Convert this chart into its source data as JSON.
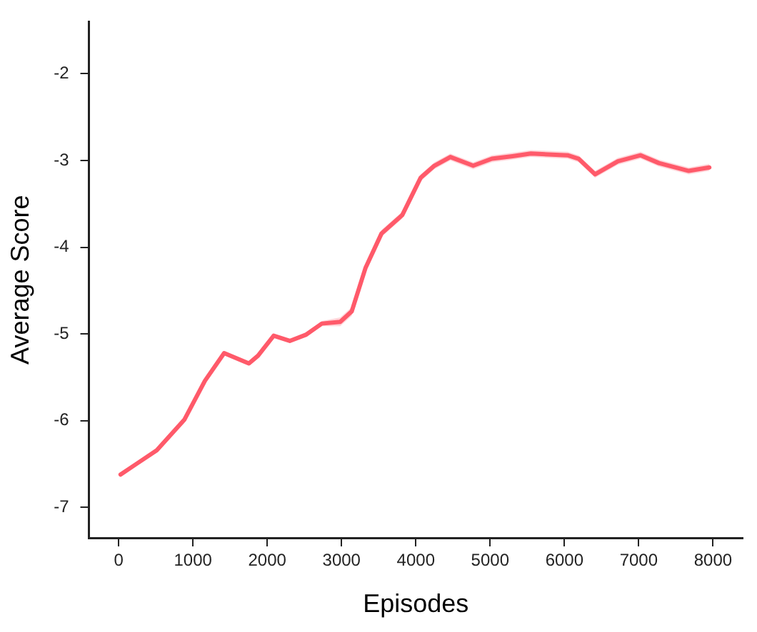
{
  "chart_data": {
    "type": "line",
    "xlabel": "Episodes",
    "ylabel": "Average Score",
    "xlim": [
      -400,
      8400
    ],
    "ylim": [
      -7.35,
      -1.4
    ],
    "xticks": [
      0,
      1000,
      2000,
      3000,
      4000,
      5000,
      6000,
      7000,
      8000
    ],
    "yticks": [
      -7,
      -6,
      -5,
      -4,
      -3,
      -2
    ],
    "grid": false,
    "legend": false,
    "marker": "none",
    "line_style": "solid",
    "series": [
      {
        "color": "#ff5a6a",
        "x": [
          26,
          235,
          513,
          883,
          1161,
          1420,
          1753,
          1876,
          2087,
          2303,
          2518,
          2735,
          2982,
          3137,
          3322,
          3539,
          3817,
          4064,
          4250,
          4465,
          4772,
          5024,
          5302,
          5549,
          6043,
          6192,
          6413,
          6720,
          7026,
          7272,
          7674,
          7951
        ],
        "values": [
          -6.62,
          -6.5,
          -6.34,
          -5.99,
          -5.54,
          -5.22,
          -5.34,
          -5.25,
          -5.02,
          -5.08,
          -5.01,
          -4.88,
          -4.86,
          -4.74,
          -4.24,
          -3.84,
          -3.63,
          -3.2,
          -3.06,
          -2.96,
          -3.06,
          -2.98,
          -2.95,
          -2.92,
          -2.94,
          -2.98,
          -3.16,
          -3.01,
          -2.94,
          -3.03,
          -3.12,
          -3.08
        ],
        "lower": [
          -6.64,
          -6.52,
          -6.36,
          -6.01,
          -5.56,
          -5.24,
          -5.36,
          -5.27,
          -5.04,
          -5.1,
          -5.03,
          -4.91,
          -4.91,
          -4.79,
          -4.28,
          -3.88,
          -3.67,
          -3.24,
          -3.1,
          -3.0,
          -3.1,
          -3.02,
          -2.99,
          -2.96,
          -2.98,
          -3.02,
          -3.2,
          -3.05,
          -2.98,
          -3.07,
          -3.16,
          -3.12
        ],
        "upper": [
          -6.6,
          -6.48,
          -6.32,
          -5.97,
          -5.52,
          -5.2,
          -5.32,
          -5.23,
          -5.0,
          -5.06,
          -4.99,
          -4.85,
          -4.81,
          -4.69,
          -4.2,
          -3.8,
          -3.59,
          -3.16,
          -3.02,
          -2.92,
          -3.02,
          -2.94,
          -2.91,
          -2.88,
          -2.9,
          -2.94,
          -3.12,
          -2.97,
          -2.9,
          -2.99,
          -3.08,
          -3.04
        ]
      }
    ]
  }
}
